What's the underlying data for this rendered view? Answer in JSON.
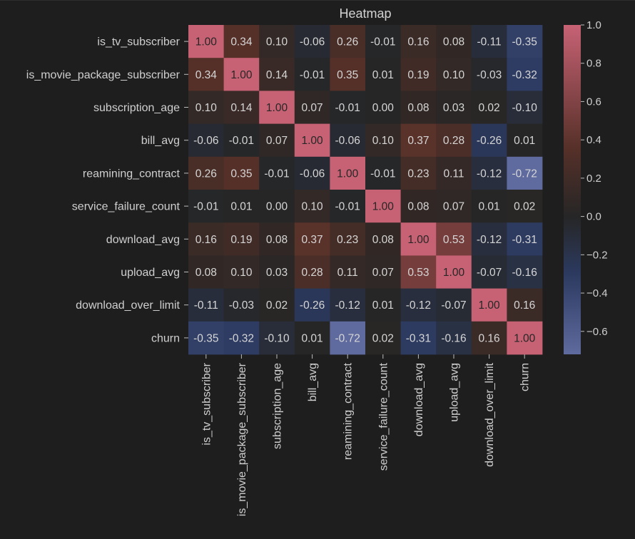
{
  "chart_data": {
    "type": "heatmap",
    "title": "Heatmap",
    "variables": [
      "is_tv_subscriber",
      "is_movie_package_subscriber",
      "subscription_age",
      "bill_avg",
      "reamining_contract",
      "service_failure_count",
      "download_avg",
      "upload_avg",
      "download_over_limit",
      "churn"
    ],
    "matrix": [
      [
        1.0,
        0.34,
        0.1,
        -0.06,
        0.26,
        -0.01,
        0.16,
        0.08,
        -0.11,
        -0.35
      ],
      [
        0.34,
        1.0,
        0.14,
        -0.01,
        0.35,
        0.01,
        0.19,
        0.1,
        -0.03,
        -0.32
      ],
      [
        0.1,
        0.14,
        1.0,
        0.07,
        -0.01,
        0.0,
        0.08,
        0.03,
        0.02,
        -0.1
      ],
      [
        -0.06,
        -0.01,
        0.07,
        1.0,
        -0.06,
        0.1,
        0.37,
        0.28,
        -0.26,
        0.01
      ],
      [
        0.26,
        0.35,
        -0.01,
        -0.06,
        1.0,
        -0.01,
        0.23,
        0.11,
        -0.12,
        -0.72
      ],
      [
        -0.01,
        0.01,
        0.0,
        0.1,
        -0.01,
        1.0,
        0.08,
        0.07,
        0.01,
        0.02
      ],
      [
        0.16,
        0.19,
        0.08,
        0.37,
        0.23,
        0.08,
        1.0,
        0.53,
        -0.12,
        -0.31
      ],
      [
        0.08,
        0.1,
        0.03,
        0.28,
        0.11,
        0.07,
        0.53,
        1.0,
        -0.07,
        -0.16
      ],
      [
        -0.11,
        -0.03,
        0.02,
        -0.26,
        -0.12,
        0.01,
        -0.12,
        -0.07,
        1.0,
        0.16
      ],
      [
        -0.35,
        -0.32,
        -0.1,
        0.01,
        -0.72,
        0.02,
        -0.31,
        -0.16,
        0.16,
        1.0
      ]
    ],
    "value_format": "2 decimals",
    "colorbar": {
      "range": [
        -0.72,
        1.0
      ],
      "ticks": [
        "1.0",
        "0.8",
        "0.6",
        "0.4",
        "0.2",
        "0.0",
        "−0.2",
        "−0.4",
        "−0.6"
      ],
      "tick_values": [
        1.0,
        0.8,
        0.6,
        0.4,
        0.2,
        0.0,
        -0.2,
        -0.4,
        -0.6
      ]
    },
    "colormap": {
      "low": "#5f6a9e",
      "low_mid": "#2c3a60",
      "mid": "#262626",
      "high_mid": "#553028",
      "high": "#c76274"
    },
    "background": "#1e1e1e"
  }
}
